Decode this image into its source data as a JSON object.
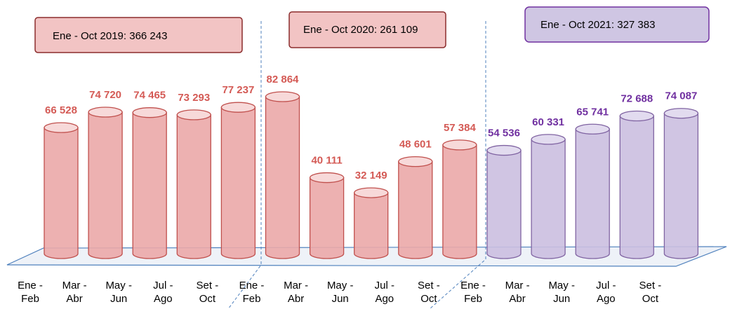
{
  "chart_data": {
    "type": "cylinder-bar",
    "categories": [
      "Ene - Feb",
      "Mar - Abr",
      "May - Jun",
      "Jul - Ago",
      "Set - Oct",
      "Ene - Feb",
      "Mar - Abr",
      "May - Jun",
      "Jul - Ago",
      "Set - Oct",
      "Ene - Feb",
      "Mar - Abr",
      "May - Jun",
      "Jul - Ago",
      "Set - Oct"
    ],
    "values": [
      66528,
      74720,
      74465,
      73293,
      77237,
      82864,
      40111,
      32149,
      48601,
      57384,
      54536,
      60331,
      65741,
      72688,
      74087
    ],
    "value_labels": [
      "66 528",
      "74 720",
      "74 465",
      "73 293",
      "77 237",
      "82 864",
      "40 111",
      "32 149",
      "48 601",
      "57 384",
      "54 536",
      "60 331",
      "65 741",
      "72 688",
      "74 087"
    ],
    "colors": [
      "#c0504d",
      "#c0504d",
      "#c0504d",
      "#c0504d",
      "#c0504d",
      "#c0504d",
      "#c0504d",
      "#c0504d",
      "#c0504d",
      "#c0504d",
      "#7030a0",
      "#7030a0",
      "#7030a0",
      "#7030a0",
      "#7030a0"
    ],
    "annotations": [
      "Ene - Oct 2019: 366 243",
      "Ene - Oct 2020: 261 109",
      "Ene - Oct 2021: 327 383"
    ]
  }
}
